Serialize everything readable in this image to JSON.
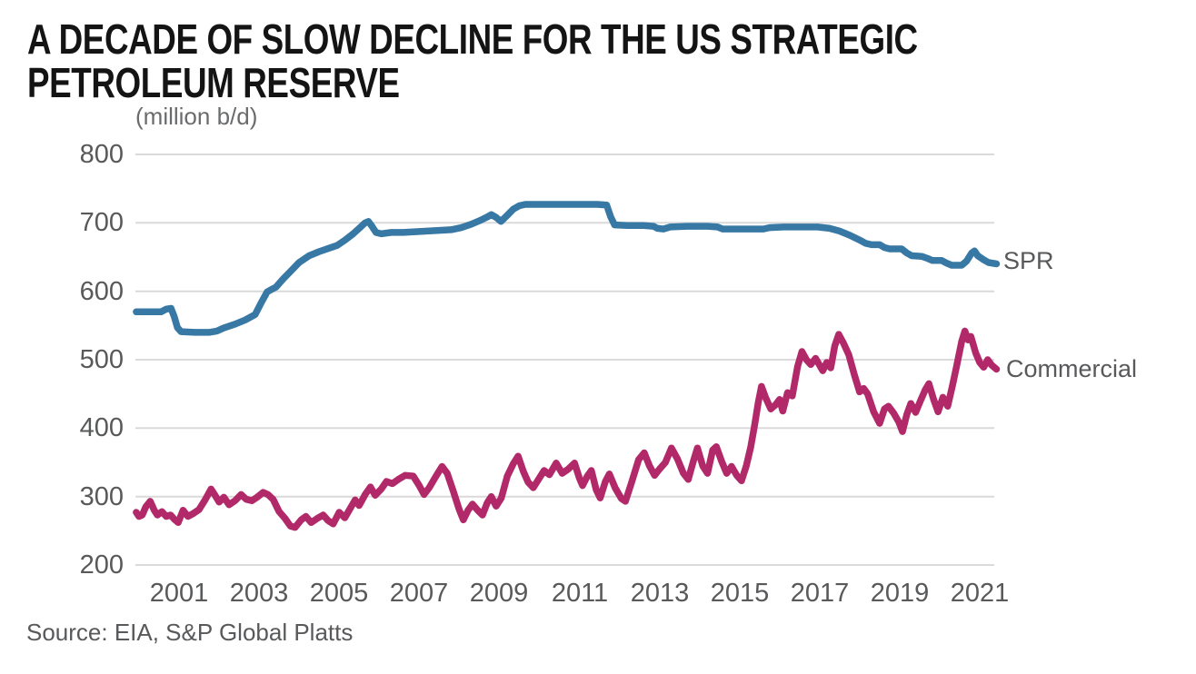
{
  "title": {
    "line1": "A DECADE OF SLOW DECLINE FOR THE US STRATEGIC",
    "line2": "PETROLEUM RESERVE"
  },
  "source": "Source: EIA, S&P Global Platts",
  "colors": {
    "spr_line": "#3878A4",
    "commercial_line": "#B2296A",
    "grid": "#DADADA",
    "axis_text": "#58595B",
    "title_text": "#141414"
  },
  "chart_data": {
    "type": "line",
    "title": "A DECADE OF SLOW DECLINE FOR THE US STRATEGIC PETROLEUM RESERVE",
    "xlabel": "",
    "ylabel": "(million b/d)",
    "grid": "horizontal",
    "legend_position": "right-end-of-lines",
    "x_range": [
      1999.93,
      2021.45
    ],
    "y_range": [
      200,
      800
    ],
    "x_ticks": [
      2001,
      2003,
      2005,
      2007,
      2009,
      2011,
      2013,
      2015,
      2017,
      2019,
      2021
    ],
    "y_ticks": [
      800,
      700,
      600,
      500,
      400,
      300,
      200
    ],
    "series": [
      {
        "name": "SPR",
        "color": "#3878A4",
        "points": [
          [
            1999.93,
            570
          ],
          [
            2000.3,
            570
          ],
          [
            2000.55,
            570
          ],
          [
            2000.68,
            574
          ],
          [
            2000.8,
            575
          ],
          [
            2000.88,
            563
          ],
          [
            2000.96,
            547
          ],
          [
            2001.05,
            541
          ],
          [
            2001.4,
            540
          ],
          [
            2001.75,
            540
          ],
          [
            2001.95,
            542
          ],
          [
            2002.1,
            546
          ],
          [
            2002.4,
            552
          ],
          [
            2002.65,
            558
          ],
          [
            2002.9,
            566
          ],
          [
            2003.05,
            583
          ],
          [
            2003.2,
            599
          ],
          [
            2003.32,
            603
          ],
          [
            2003.42,
            606
          ],
          [
            2003.6,
            618
          ],
          [
            2003.8,
            630
          ],
          [
            2004.0,
            642
          ],
          [
            2004.25,
            652
          ],
          [
            2004.5,
            658
          ],
          [
            2004.75,
            663
          ],
          [
            2004.95,
            667
          ],
          [
            2005.15,
            675
          ],
          [
            2005.35,
            684
          ],
          [
            2005.5,
            692
          ],
          [
            2005.65,
            700
          ],
          [
            2005.73,
            702
          ],
          [
            2005.82,
            695
          ],
          [
            2005.92,
            686
          ],
          [
            2006.05,
            684
          ],
          [
            2006.3,
            686
          ],
          [
            2006.6,
            686
          ],
          [
            2006.9,
            687
          ],
          [
            2007.2,
            688
          ],
          [
            2007.5,
            689
          ],
          [
            2007.8,
            690
          ],
          [
            2008.05,
            693
          ],
          [
            2008.3,
            698
          ],
          [
            2008.5,
            703
          ],
          [
            2008.68,
            708
          ],
          [
            2008.8,
            712
          ],
          [
            2008.92,
            708
          ],
          [
            2009.04,
            702
          ],
          [
            2009.2,
            711
          ],
          [
            2009.35,
            720
          ],
          [
            2009.5,
            725
          ],
          [
            2009.65,
            727
          ],
          [
            2010.2,
            727
          ],
          [
            2010.9,
            727
          ],
          [
            2011.45,
            727
          ],
          [
            2011.68,
            726
          ],
          [
            2011.78,
            709
          ],
          [
            2011.88,
            697
          ],
          [
            2012.2,
            696
          ],
          [
            2012.6,
            696
          ],
          [
            2012.85,
            695
          ],
          [
            2012.95,
            692
          ],
          [
            2013.1,
            691
          ],
          [
            2013.27,
            694
          ],
          [
            2013.7,
            695
          ],
          [
            2014.2,
            695
          ],
          [
            2014.45,
            694
          ],
          [
            2014.58,
            691
          ],
          [
            2015.0,
            691
          ],
          [
            2015.3,
            691
          ],
          [
            2015.6,
            691
          ],
          [
            2015.75,
            693
          ],
          [
            2016.1,
            694
          ],
          [
            2016.6,
            694
          ],
          [
            2016.95,
            694
          ],
          [
            2017.25,
            692
          ],
          [
            2017.5,
            688
          ],
          [
            2017.75,
            682
          ],
          [
            2018.0,
            675
          ],
          [
            2018.15,
            670
          ],
          [
            2018.3,
            668
          ],
          [
            2018.5,
            668
          ],
          [
            2018.62,
            664
          ],
          [
            2018.75,
            662
          ],
          [
            2019.05,
            662
          ],
          [
            2019.18,
            656
          ],
          [
            2019.3,
            652
          ],
          [
            2019.55,
            651
          ],
          [
            2019.7,
            648
          ],
          [
            2019.82,
            645
          ],
          [
            2020.05,
            645
          ],
          [
            2020.18,
            641
          ],
          [
            2020.3,
            638
          ],
          [
            2020.55,
            638
          ],
          [
            2020.67,
            644
          ],
          [
            2020.8,
            656
          ],
          [
            2020.87,
            659
          ],
          [
            2020.95,
            652
          ],
          [
            2021.1,
            646
          ],
          [
            2021.22,
            642
          ],
          [
            2021.42,
            640
          ]
        ]
      },
      {
        "name": "Commercial",
        "color": "#B2296A",
        "points": [
          [
            1999.93,
            277
          ],
          [
            2000.0,
            271
          ],
          [
            2000.08,
            273
          ],
          [
            2000.17,
            285
          ],
          [
            2000.28,
            293
          ],
          [
            2000.38,
            280
          ],
          [
            2000.46,
            273
          ],
          [
            2000.57,
            278
          ],
          [
            2000.68,
            271
          ],
          [
            2000.79,
            273
          ],
          [
            2000.88,
            267
          ],
          [
            2000.98,
            262
          ],
          [
            2001.1,
            280
          ],
          [
            2001.22,
            271
          ],
          [
            2001.35,
            275
          ],
          [
            2001.5,
            281
          ],
          [
            2001.65,
            295
          ],
          [
            2001.8,
            311
          ],
          [
            2001.9,
            302
          ],
          [
            2002.0,
            292
          ],
          [
            2002.12,
            299
          ],
          [
            2002.25,
            288
          ],
          [
            2002.4,
            294
          ],
          [
            2002.55,
            303
          ],
          [
            2002.68,
            296
          ],
          [
            2002.82,
            294
          ],
          [
            2002.95,
            299
          ],
          [
            2003.1,
            306
          ],
          [
            2003.22,
            303
          ],
          [
            2003.35,
            296
          ],
          [
            2003.5,
            278
          ],
          [
            2003.65,
            268
          ],
          [
            2003.78,
            257
          ],
          [
            2003.9,
            255
          ],
          [
            2004.05,
            266
          ],
          [
            2004.17,
            271
          ],
          [
            2004.3,
            262
          ],
          [
            2004.45,
            268
          ],
          [
            2004.6,
            273
          ],
          [
            2004.72,
            265
          ],
          [
            2004.85,
            260
          ],
          [
            2005.0,
            277
          ],
          [
            2005.14,
            269
          ],
          [
            2005.28,
            283
          ],
          [
            2005.4,
            295
          ],
          [
            2005.5,
            287
          ],
          [
            2005.65,
            303
          ],
          [
            2005.78,
            314
          ],
          [
            2005.9,
            302
          ],
          [
            2006.05,
            311
          ],
          [
            2006.18,
            322
          ],
          [
            2006.33,
            319
          ],
          [
            2006.5,
            326
          ],
          [
            2006.65,
            331
          ],
          [
            2006.85,
            330
          ],
          [
            2007.0,
            316
          ],
          [
            2007.12,
            303
          ],
          [
            2007.25,
            313
          ],
          [
            2007.42,
            330
          ],
          [
            2007.57,
            344
          ],
          [
            2007.7,
            334
          ],
          [
            2007.85,
            308
          ],
          [
            2008.0,
            281
          ],
          [
            2008.1,
            266
          ],
          [
            2008.22,
            280
          ],
          [
            2008.33,
            289
          ],
          [
            2008.46,
            280
          ],
          [
            2008.58,
            273
          ],
          [
            2008.7,
            291
          ],
          [
            2008.8,
            300
          ],
          [
            2008.92,
            286
          ],
          [
            2009.05,
            298
          ],
          [
            2009.2,
            330
          ],
          [
            2009.35,
            348
          ],
          [
            2009.47,
            359
          ],
          [
            2009.6,
            337
          ],
          [
            2009.72,
            321
          ],
          [
            2009.85,
            313
          ],
          [
            2010.0,
            327
          ],
          [
            2010.12,
            338
          ],
          [
            2010.25,
            332
          ],
          [
            2010.42,
            349
          ],
          [
            2010.57,
            334
          ],
          [
            2010.72,
            340
          ],
          [
            2010.88,
            349
          ],
          [
            2011.0,
            327
          ],
          [
            2011.08,
            316
          ],
          [
            2011.2,
            330
          ],
          [
            2011.3,
            338
          ],
          [
            2011.42,
            310
          ],
          [
            2011.52,
            298
          ],
          [
            2011.65,
            322
          ],
          [
            2011.75,
            333
          ],
          [
            2011.9,
            312
          ],
          [
            2012.05,
            297
          ],
          [
            2012.15,
            293
          ],
          [
            2012.3,
            320
          ],
          [
            2012.48,
            354
          ],
          [
            2012.62,
            364
          ],
          [
            2012.75,
            345
          ],
          [
            2012.88,
            331
          ],
          [
            2013.0,
            340
          ],
          [
            2013.15,
            350
          ],
          [
            2013.3,
            371
          ],
          [
            2013.45,
            355
          ],
          [
            2013.6,
            334
          ],
          [
            2013.72,
            325
          ],
          [
            2013.85,
            352
          ],
          [
            2013.95,
            371
          ],
          [
            2014.08,
            345
          ],
          [
            2014.2,
            334
          ],
          [
            2014.33,
            368
          ],
          [
            2014.42,
            373
          ],
          [
            2014.55,
            352
          ],
          [
            2014.68,
            334
          ],
          [
            2014.8,
            344
          ],
          [
            2014.93,
            331
          ],
          [
            2015.05,
            323
          ],
          [
            2015.17,
            345
          ],
          [
            2015.28,
            372
          ],
          [
            2015.38,
            405
          ],
          [
            2015.47,
            438
          ],
          [
            2015.55,
            461
          ],
          [
            2015.65,
            445
          ],
          [
            2015.78,
            428
          ],
          [
            2015.9,
            434
          ],
          [
            2016.0,
            442
          ],
          [
            2016.08,
            425
          ],
          [
            2016.2,
            452
          ],
          [
            2016.32,
            447
          ],
          [
            2016.45,
            490
          ],
          [
            2016.56,
            512
          ],
          [
            2016.67,
            500
          ],
          [
            2016.78,
            493
          ],
          [
            2016.9,
            502
          ],
          [
            2017.0,
            492
          ],
          [
            2017.08,
            484
          ],
          [
            2017.18,
            496
          ],
          [
            2017.28,
            488
          ],
          [
            2017.38,
            520
          ],
          [
            2017.48,
            537
          ],
          [
            2017.6,
            524
          ],
          [
            2017.73,
            507
          ],
          [
            2017.87,
            478
          ],
          [
            2018.0,
            453
          ],
          [
            2018.1,
            458
          ],
          [
            2018.2,
            450
          ],
          [
            2018.35,
            424
          ],
          [
            2018.5,
            407
          ],
          [
            2018.62,
            428
          ],
          [
            2018.72,
            432
          ],
          [
            2018.85,
            422
          ],
          [
            2018.98,
            409
          ],
          [
            2019.07,
            395
          ],
          [
            2019.18,
            420
          ],
          [
            2019.28,
            436
          ],
          [
            2019.4,
            423
          ],
          [
            2019.52,
            440
          ],
          [
            2019.64,
            456
          ],
          [
            2019.73,
            465
          ],
          [
            2019.85,
            442
          ],
          [
            2019.96,
            424
          ],
          [
            2020.08,
            445
          ],
          [
            2020.2,
            432
          ],
          [
            2020.32,
            462
          ],
          [
            2020.42,
            490
          ],
          [
            2020.55,
            527
          ],
          [
            2020.63,
            542
          ],
          [
            2020.71,
            529
          ],
          [
            2020.78,
            534
          ],
          [
            2020.9,
            510
          ],
          [
            2021.0,
            496
          ],
          [
            2021.1,
            489
          ],
          [
            2021.2,
            500
          ],
          [
            2021.3,
            492
          ],
          [
            2021.42,
            486
          ]
        ]
      }
    ]
  }
}
